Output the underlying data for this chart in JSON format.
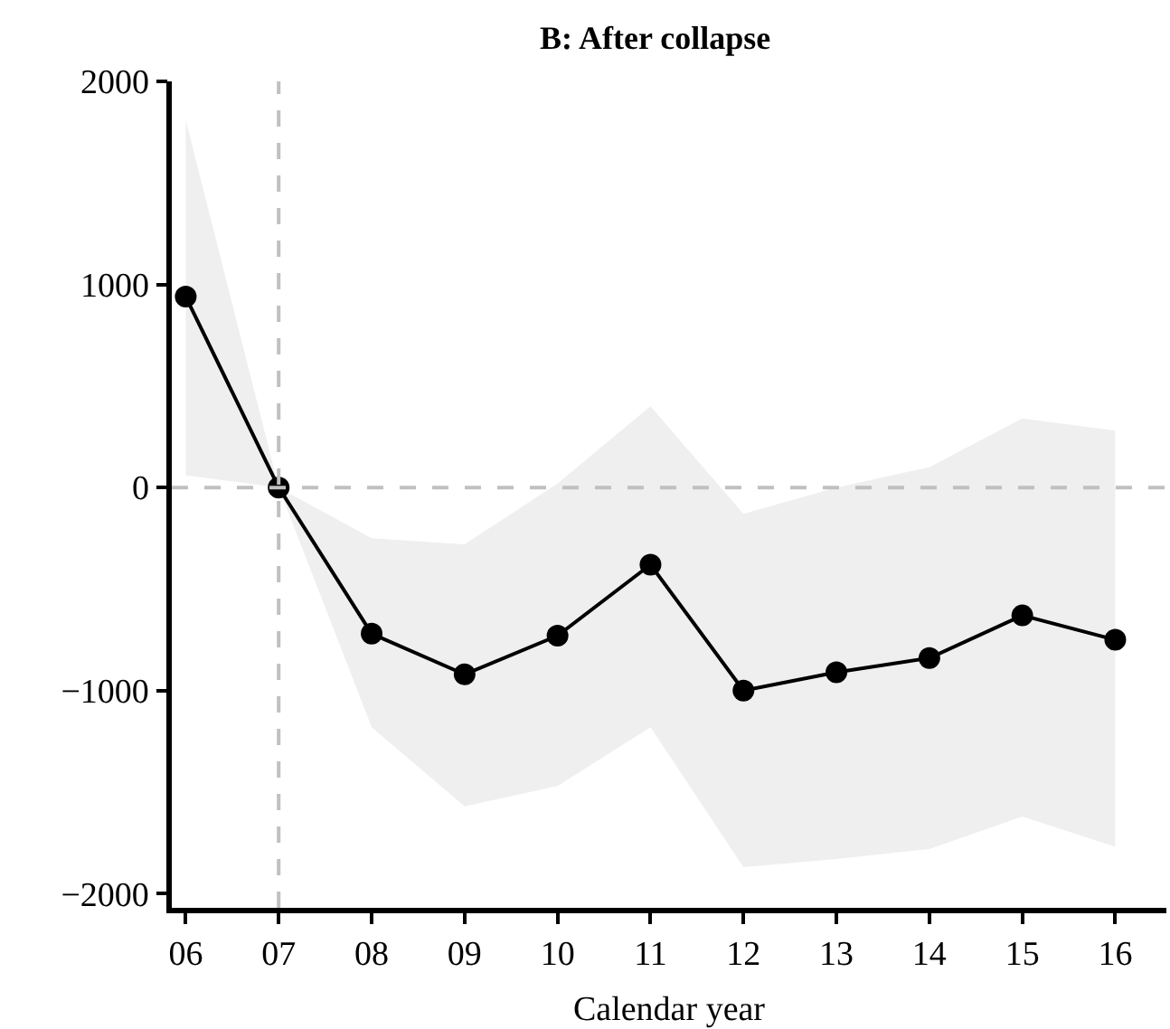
{
  "chart_data": {
    "type": "line",
    "title": "B: After collapse",
    "xlabel": "Calendar year",
    "x": [
      6,
      7,
      8,
      9,
      10,
      11,
      12,
      13,
      14,
      15,
      16
    ],
    "series": [
      {
        "color": "#000000",
        "values": [
          940,
          0,
          -720,
          -920,
          -730,
          -380,
          -1000,
          -910,
          -840,
          -630,
          -750
        ],
        "lower": [
          60,
          0,
          -1180,
          -1570,
          -1470,
          -1180,
          -1870,
          -1830,
          -1780,
          -1620,
          -1770
        ],
        "upper": [
          1810,
          0,
          -250,
          -280,
          20,
          400,
          -130,
          0,
          100,
          340,
          280
        ]
      }
    ],
    "xlim": [
      5.85,
      16.55
    ],
    "ylim": [
      -2070,
      2000
    ],
    "xticks": [
      {
        "value": 6,
        "label": "06"
      },
      {
        "value": 7,
        "label": "07"
      },
      {
        "value": 8,
        "label": "08"
      },
      {
        "value": 9,
        "label": "09"
      },
      10,
      11,
      12,
      13,
      14,
      15,
      16
    ],
    "yticks": [
      -2000,
      -1000,
      0,
      1000,
      2000
    ],
    "ref_lines": [
      {
        "axis": "x",
        "value": 7,
        "color": "#c0c0c0",
        "line_style": "dashed"
      },
      {
        "axis": "y",
        "value": 0,
        "color": "#c0c0c0",
        "line_style": "dashed"
      }
    ],
    "marker": "circle",
    "line_style": "solid"
  }
}
